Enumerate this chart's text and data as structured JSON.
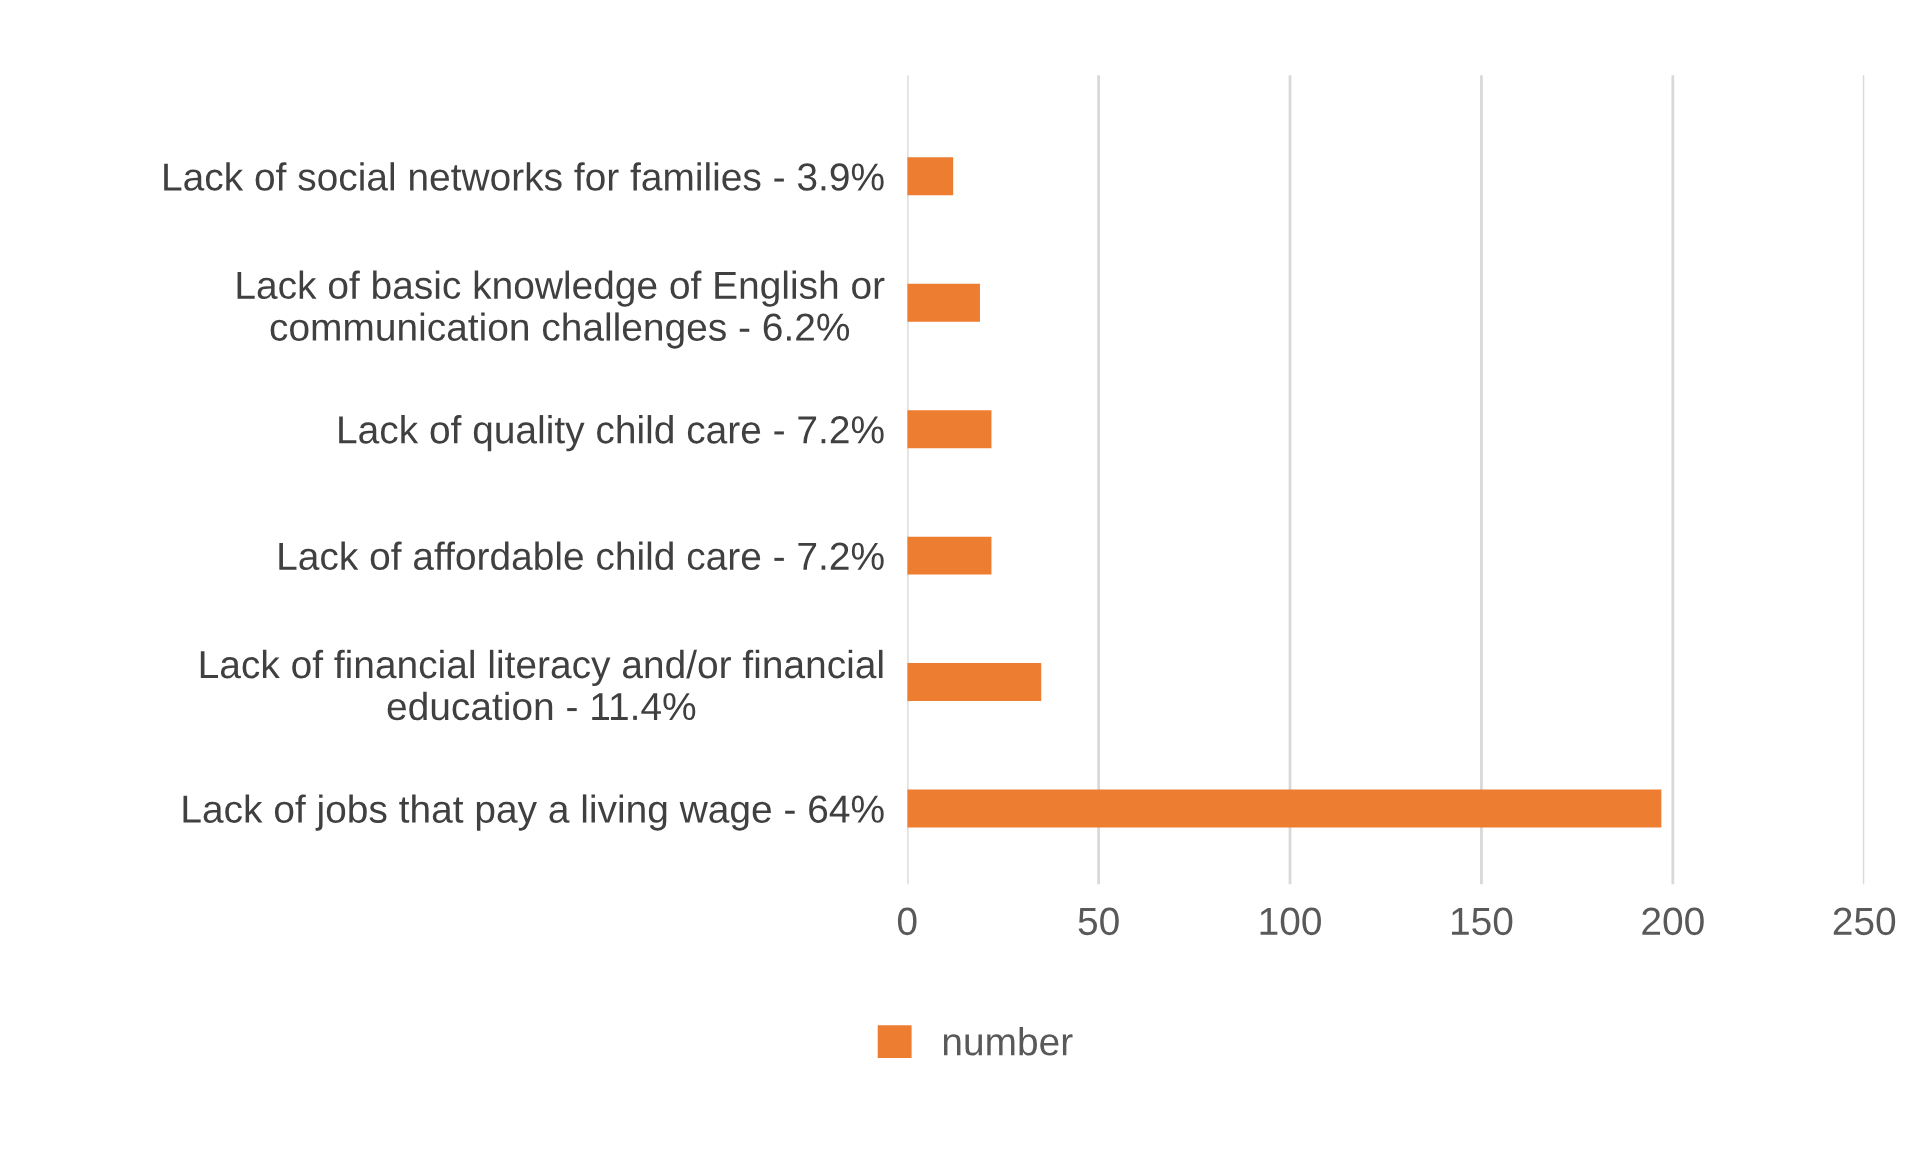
{
  "chart_data": {
    "type": "bar",
    "orientation": "horizontal",
    "categories": [
      "Lack of social networks for families - 3.9%",
      "Lack of basic knowledge of English or\ncommunication challenges - 6.2%",
      "Lack of quality child care - 7.2%",
      "Lack of affordable child care - 7.2%",
      "Lack of financial literacy and/or financial\neducation - 11.4%",
      "Lack of jobs that pay a living wage - 64%"
    ],
    "series": [
      {
        "name": "number",
        "color": "#ed7d31",
        "values": [
          12,
          19,
          22,
          22,
          35,
          197
        ]
      }
    ],
    "xlim": [
      0,
      250
    ],
    "xticks": [
      0,
      50,
      100,
      150,
      200,
      250
    ],
    "grid": "x",
    "legend": "bottom"
  }
}
